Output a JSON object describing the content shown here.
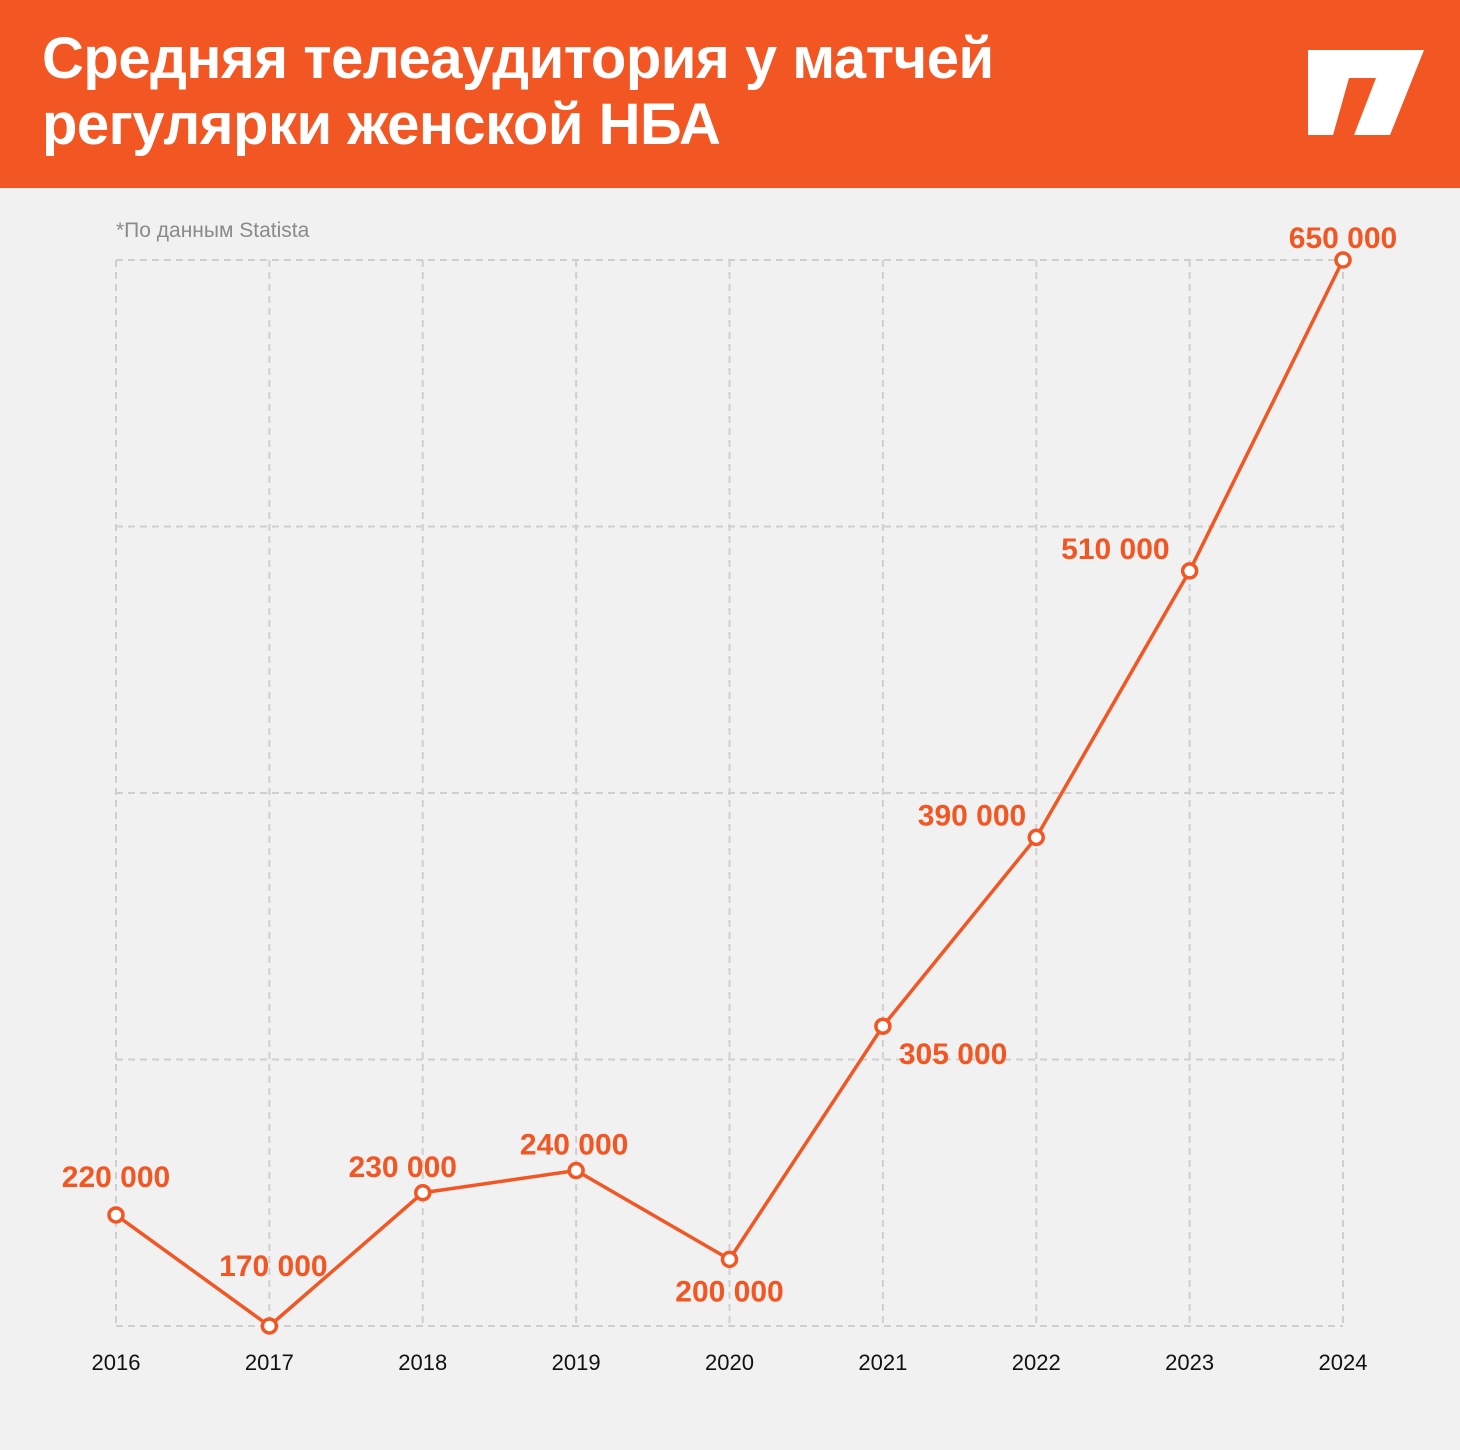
{
  "header": {
    "title": "Средняя телеаудитория у матчей регулярки женской НБА",
    "logo_icon": "brand-logo-icon"
  },
  "source_note": "*По данным Statista",
  "colors": {
    "accent": "#f25623",
    "background": "#f1f1f1",
    "grid": "#cfcfcf"
  },
  "chart_data": {
    "type": "line",
    "title": "Средняя телеаудитория у матчей регулярки женской НБА",
    "xlabel": "",
    "ylabel": "",
    "categories": [
      "2016",
      "2017",
      "2018",
      "2019",
      "2020",
      "2021",
      "2022",
      "2023",
      "2024"
    ],
    "values": [
      220000,
      170000,
      230000,
      240000,
      200000,
      305000,
      390000,
      510000,
      650000
    ],
    "value_labels": [
      "220 000",
      "170 000",
      "230 000",
      "240 000",
      "200 000",
      "305 000",
      "390 000",
      "510 000",
      "650 000"
    ],
    "ylim": [
      170000,
      650000
    ],
    "grid": true,
    "legend": "none"
  }
}
